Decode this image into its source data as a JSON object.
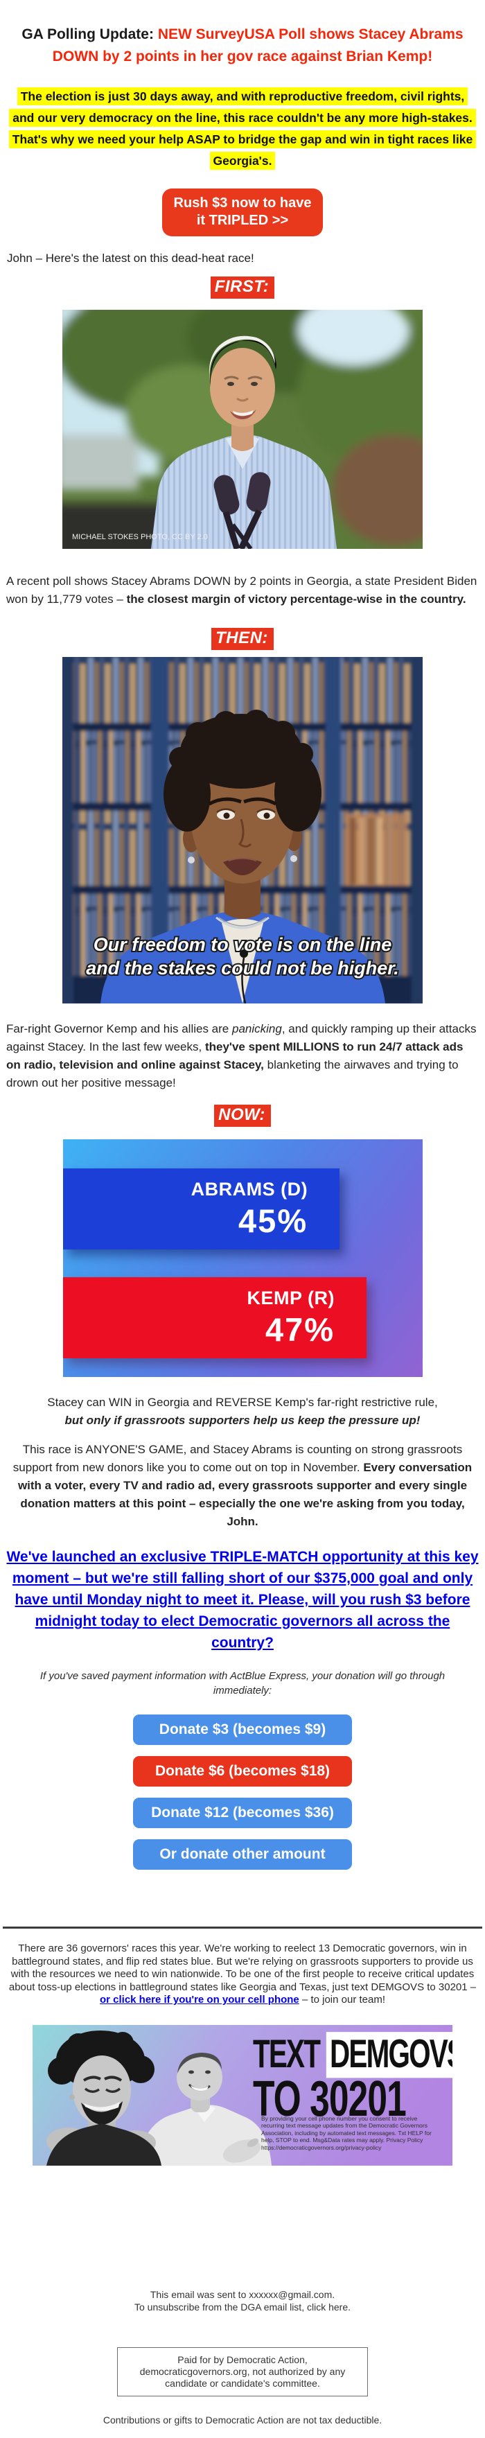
{
  "colors": {
    "headline_red": "#f5270b",
    "accent_red": "#e8341c",
    "highlight_yellow": "#ffff00",
    "link_blue": "#0000ee",
    "donate_blue": "#4a90e8",
    "bar_blue": "#1c3fd8",
    "bar_red": "#ec0e23"
  },
  "headline": {
    "black": "GA Polling Update:",
    "red": "NEW SurveyUSA Poll shows Stacey Abrams DOWN by 2 points in her gov race against Brian Kemp!"
  },
  "intro_highlight": "The election is just 30 days away, and with reproductive freedom, civil rights, and our very democracy on the line, this race couldn't be any more high-stakes. That's why we need your help ASAP to bridge the gap and win in tight races like Georgia's.",
  "cta_button": {
    "line1": "Rush $3 now to have",
    "line2": "it TRIPLED >>"
  },
  "greeting": "John – Here's the latest on this dead-heat race!",
  "labels": {
    "first": "FIRST:",
    "then": "THEN:",
    "now": "NOW:"
  },
  "biden_photo": {
    "credit": "MICHAEL STOKES PHOTO, CC BY 2.0"
  },
  "poll_paragraph": {
    "normal": "A recent poll shows Stacey Abrams DOWN by 2 points in Georgia, a state President Biden won by 11,779 votes – ",
    "bold": "the closest margin of victory percentage-wise in the country."
  },
  "abrams_photo": {
    "caption_line1": "Our freedom to vote is on the line",
    "caption_line2": "and the stakes could not be higher."
  },
  "kemp_paragraph": {
    "part1": "Far-right Governor Kemp and his allies are ",
    "italic": "panicking",
    "part2": ", and quickly ramping up their attacks against Stacey. In the last few weeks, ",
    "bold": "they've spent MILLIONS to run 24/7 attack ads on radio, television and online against Stacey,",
    "part3": " blanketing the airwaves and trying to drown out her positive message!"
  },
  "chart_data": {
    "type": "bar",
    "orientation": "horizontal",
    "categories": [
      "ABRAMS (D)",
      "KEMP (R)"
    ],
    "values": [
      45,
      47
    ],
    "display_values": [
      "45%",
      "47%"
    ],
    "series_colors": [
      "#1c3fd8",
      "#ec0e23"
    ],
    "bar_width_pct": [
      77,
      84.5
    ],
    "title": "",
    "xlabel": "",
    "ylabel": "",
    "legend": "none",
    "background": "blue-to-purple gradient"
  },
  "win_paragraph": {
    "normal": "Stacey can WIN in Georgia and REVERSE Kemp's far-right restrictive rule,",
    "bold_italic": "but only if grassroots supporters help us keep the pressure up!"
  },
  "game_paragraph": {
    "normal": "This race is ANYONE'S GAME, and Stacey Abrams is counting on strong grassroots support from new donors like you to come out on top in November. ",
    "bold": "Every conversation with a voter, every TV and radio ad, every grassroots supporter and every single donation matters at this point – especially the one we're asking from you today, John."
  },
  "match_link": "We've launched an exclusive TRIPLE-MATCH opportunity at this key moment – but we're still falling short of our $375,000 goal and only have until Monday night to meet it. Please, will you rush $3 before midnight today to elect Democratic governors all across the country?",
  "actblue_note": "If you've saved payment information with ActBlue Express, your donation will go through immediately:",
  "donate_buttons": [
    {
      "label": "Donate $3 (becomes $9)",
      "style": "blue"
    },
    {
      "label": "Donate $6 (becomes $18)",
      "style": "red"
    },
    {
      "label": "Donate $12 (becomes $36)",
      "style": "blue"
    },
    {
      "label": "Or donate other amount",
      "style": "blue"
    }
  ],
  "footer_info": {
    "part1": "There are 36 governors' races this year. We're working to reelect 13 Democratic governors, win in battleground states, and flip red states blue. But we're relying on grassroots supporters to provide us with the resources we need to win nationwide. To be one of the first people to receive critical updates about toss-up elections in battleground states like Georgia and Texas, just text DEMGOVS to 30201 – ",
    "link": "or click here if you're on your cell phone",
    "part2": " – to join our team!"
  },
  "sms_banner": {
    "text_word": "TEXT ",
    "keyword": "DEMGOVS",
    "line2": "TO 30201",
    "disclaimer": "By providing your cell phone number you consent to receive recurring text message updates from the Democratic Governors Association, including by automated text messages. Txt HELP for help, STOP to end. Msg&Data rates may apply. Privacy Policy https://democraticgovernors.org/privacy-policy"
  },
  "footer": {
    "sent_line": "This email was sent to xxxxxx@gmail.com.",
    "unsub_line": "To unsubscribe from the DGA email list, click here.",
    "paid_for": "Paid for by Democratic Action, democraticgovernors.org, not authorized by any candidate or candidate's committee.",
    "tax_note": "Contributions or gifts to Democratic Action are not tax deductible."
  }
}
